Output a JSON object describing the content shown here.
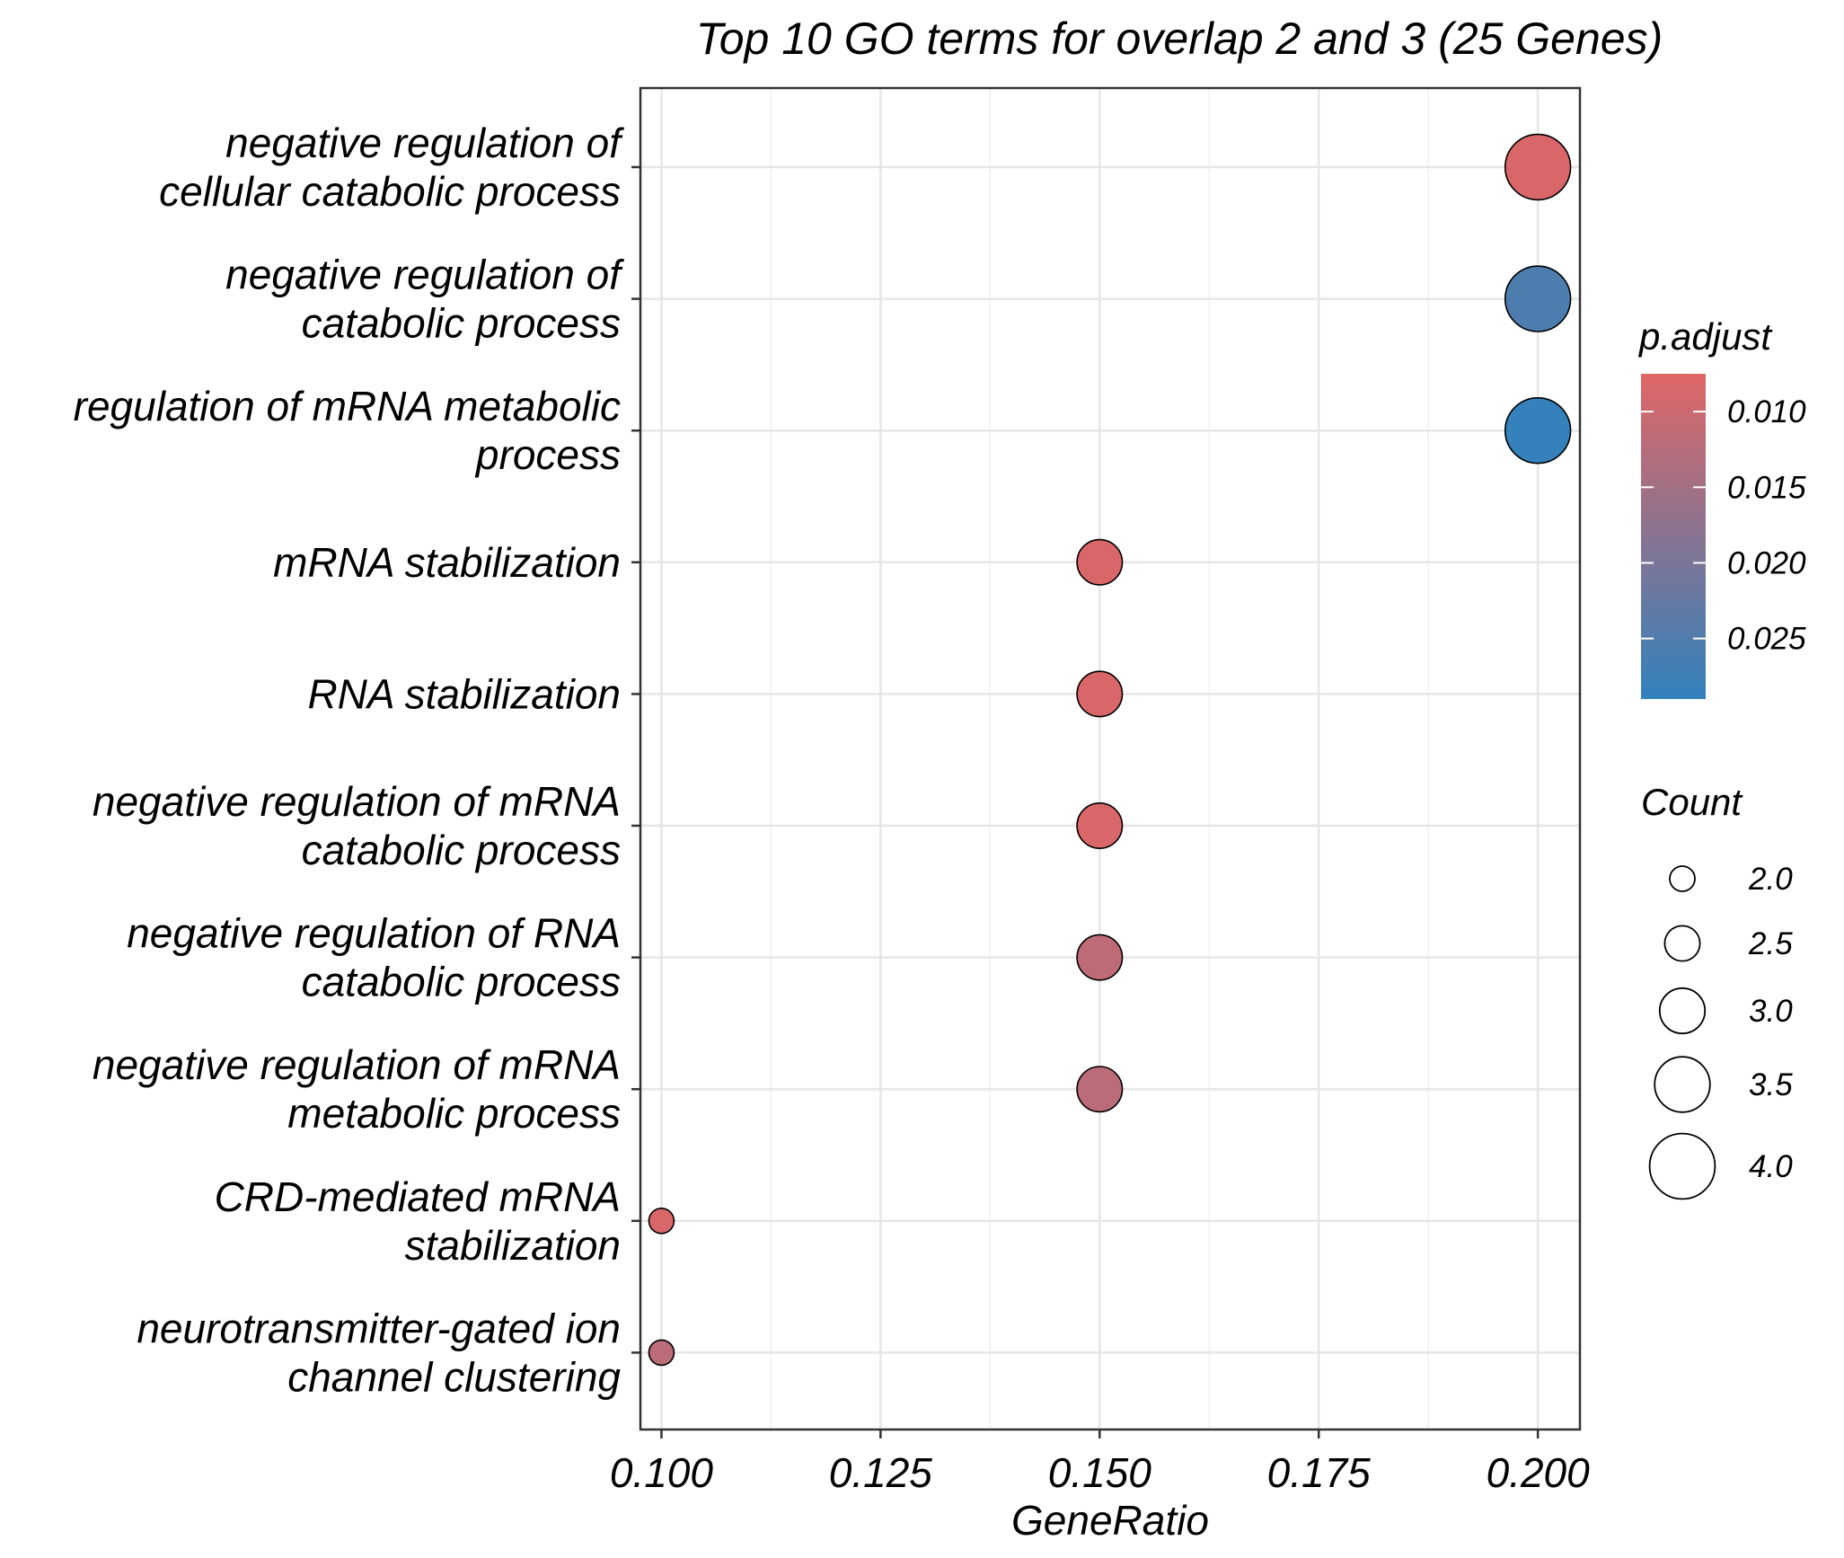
{
  "chart_data": {
    "type": "scatter",
    "title": "Top 10 GO terms for overlap 2 and 3 (25 Genes)",
    "xlabel": "GeneRatio",
    "ylabel": "",
    "xlim": [
      0.0976,
      0.2048
    ],
    "xticks": [
      "0.100",
      "0.125",
      "0.150",
      "0.175",
      "0.200"
    ],
    "grid": true,
    "legend_position": "right",
    "colors": {
      "low": "#e06666",
      "high": "#3182bd",
      "grid": "#ebebeb"
    },
    "points": [
      {
        "term": "negative regulation of cellular catabolic process",
        "label_lines": [
          "negative regulation of",
          "cellular catabolic process"
        ],
        "x": 0.2,
        "count": 4,
        "p_adjust": 0.0084
      },
      {
        "term": "negative regulation of catabolic process",
        "label_lines": [
          "negative regulation of",
          "catabolic process"
        ],
        "x": 0.2,
        "count": 4,
        "p_adjust": 0.0255
      },
      {
        "term": "regulation of mRNA metabolic process",
        "label_lines": [
          "regulation of mRNA metabolic",
          "process"
        ],
        "x": 0.2,
        "count": 4,
        "p_adjust": 0.0285
      },
      {
        "term": "mRNA stabilization",
        "label_lines": [
          "mRNA stabilization"
        ],
        "x": 0.15,
        "count": 3,
        "p_adjust": 0.0084
      },
      {
        "term": "RNA stabilization",
        "label_lines": [
          "RNA stabilization"
        ],
        "x": 0.15,
        "count": 3,
        "p_adjust": 0.0084
      },
      {
        "term": "negative regulation of mRNA catabolic process",
        "label_lines": [
          "negative regulation of mRNA",
          "catabolic process"
        ],
        "x": 0.15,
        "count": 3,
        "p_adjust": 0.0084
      },
      {
        "term": "negative regulation of RNA catabolic process",
        "label_lines": [
          "negative regulation of RNA",
          "catabolic process"
        ],
        "x": 0.15,
        "count": 3,
        "p_adjust": 0.0115
      },
      {
        "term": "negative regulation of mRNA metabolic process",
        "label_lines": [
          "negative regulation of mRNA",
          "metabolic process"
        ],
        "x": 0.15,
        "count": 3,
        "p_adjust": 0.012
      },
      {
        "term": "CRD-mediated mRNA stabilization",
        "label_lines": [
          "CRD-mediated mRNA",
          "stabilization"
        ],
        "x": 0.1,
        "count": 2,
        "p_adjust": 0.0084
      },
      {
        "term": "neurotransmitter-gated ion channel clustering",
        "label_lines": [
          "neurotransmitter-gated ion",
          "channel clustering"
        ],
        "x": 0.1,
        "count": 2,
        "p_adjust": 0.012
      }
    ],
    "color_legend": {
      "title": "p.adjust",
      "range": [
        0.0075,
        0.029
      ],
      "ticks": [
        0.01,
        0.015,
        0.02,
        0.025
      ],
      "tick_labels": [
        "0.010",
        "0.015",
        "0.020",
        "0.025"
      ]
    },
    "size_legend": {
      "title": "Count",
      "values": [
        2.0,
        2.5,
        3.0,
        3.5,
        4.0
      ],
      "labels": [
        "2.0",
        "2.5",
        "3.0",
        "3.5",
        "4.0"
      ]
    }
  }
}
